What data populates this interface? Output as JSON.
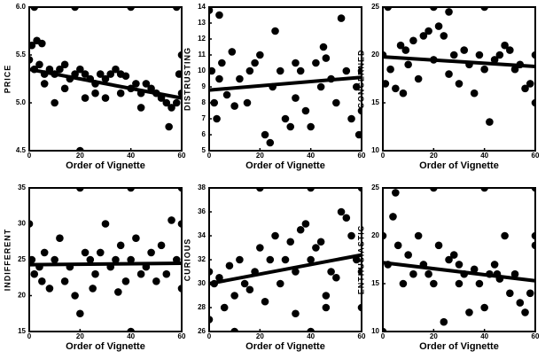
{
  "chart_data": [
    {
      "type": "scatter",
      "y_label": "PRICE",
      "x_label": "Order of Vignette",
      "color": "#000000",
      "xlim": [
        0,
        60
      ],
      "ylim": [
        4.5,
        6.0
      ],
      "xticks": [
        0,
        20,
        40,
        60
      ],
      "yticks": [
        4.5,
        {
          "value": 5,
          "label": "5.0"
        },
        5.5,
        {
          "value": 6,
          "label": "6.0"
        }
      ],
      "series": [
        {
          "x": [
            0,
            1,
            3,
            5,
            2,
            4,
            6,
            8,
            10,
            12,
            14,
            16,
            18,
            20,
            22,
            24,
            26,
            28,
            30,
            32,
            34,
            36,
            38,
            40,
            42,
            44,
            46,
            48,
            50,
            52,
            54,
            56,
            58,
            60,
            60,
            59,
            55,
            20,
            2,
            18,
            40,
            58,
            10,
            14,
            22,
            30,
            36,
            44,
            6,
            26
          ],
          "values": [
            5.45,
            5.6,
            5.65,
            5.62,
            5.35,
            5.4,
            5.3,
            5.35,
            5.3,
            5.35,
            5.4,
            5.25,
            5.3,
            5.35,
            5.3,
            5.25,
            5.2,
            5.3,
            5.25,
            5.3,
            5.35,
            5.3,
            5.28,
            5.15,
            5.2,
            5.1,
            5.2,
            5.15,
            5.1,
            5.05,
            5.0,
            4.95,
            5.0,
            5.1,
            5.5,
            5.3,
            4.75,
            4.5,
            6.0,
            6.0,
            6.0,
            6.0,
            5.0,
            5.15,
            5.05,
            5.05,
            5.1,
            4.95,
            5.2,
            5.1
          ]
        }
      ],
      "trend": {
        "x": [
          0,
          60
        ],
        "values": [
          5.35,
          5.05
        ]
      }
    },
    {
      "type": "scatter",
      "y_label": "DISTRUSTING",
      "x_label": "Order of Vignette",
      "color": "#000000",
      "xlim": [
        0,
        60
      ],
      "ylim": [
        5,
        14
      ],
      "xticks": [
        0,
        20,
        40,
        60
      ],
      "yticks": [
        5,
        6,
        7,
        8,
        9,
        10,
        11,
        12,
        13,
        14
      ],
      "series": [
        {
          "x": [
            0,
            1,
            2,
            3,
            4,
            5,
            7,
            9,
            12,
            15,
            18,
            20,
            22,
            24,
            25,
            26,
            28,
            30,
            32,
            34,
            36,
            38,
            40,
            42,
            44,
            45,
            48,
            50,
            52,
            54,
            56,
            58,
            60,
            60,
            59,
            34,
            16,
            10,
            46,
            4
          ],
          "values": [
            13.8,
            10,
            8,
            7,
            9.5,
            10.5,
            8.5,
            11.2,
            9.5,
            8,
            10.5,
            11,
            6,
            5.5,
            9,
            12.5,
            10,
            7,
            6.5,
            8.3,
            10,
            7.5,
            6.5,
            10.5,
            9,
            11.5,
            9.5,
            8,
            13.3,
            10,
            7,
            9,
            10,
            7.5,
            6,
            10.5,
            10,
            7.8,
            10.8,
            13.5
          ]
        }
      ],
      "trend": {
        "x": [
          0,
          60
        ],
        "values": [
          8.8,
          9.6
        ]
      }
    },
    {
      "type": "scatter",
      "y_label": "CONCERNED",
      "x_label": "Order of Vignette",
      "color": "#000000",
      "xlim": [
        0,
        60
      ],
      "ylim": [
        10,
        25
      ],
      "xticks": [
        0,
        20,
        40,
        60
      ],
      "yticks": [
        10,
        15,
        20,
        25
      ],
      "series": [
        {
          "x": [
            0,
            1,
            3,
            5,
            7,
            9,
            10,
            12,
            14,
            16,
            18,
            20,
            22,
            24,
            26,
            28,
            30,
            32,
            34,
            36,
            38,
            40,
            42,
            44,
            46,
            48,
            50,
            52,
            54,
            56,
            58,
            60,
            60,
            2,
            20,
            40,
            8,
            26
          ],
          "values": [
            20,
            17,
            18.5,
            16.5,
            21,
            20.5,
            19,
            21.5,
            17.5,
            22,
            22.5,
            19.5,
            23,
            22,
            18,
            20,
            17,
            20.5,
            19,
            16,
            20,
            18.5,
            13,
            19.5,
            20,
            21,
            20.5,
            18.5,
            19,
            16.5,
            17,
            15,
            20,
            25,
            25,
            25,
            16,
            24.5
          ]
        }
      ],
      "trend": {
        "x": [
          0,
          60
        ],
        "values": [
          19.8,
          18.8
        ]
      }
    },
    {
      "type": "scatter",
      "y_label": "INDIFFERENT",
      "x_label": "Order of Vignette",
      "color": "#000000",
      "xlim": [
        0,
        60
      ],
      "ylim": [
        15,
        35
      ],
      "xticks": [
        0,
        20,
        40,
        60
      ],
      "yticks": [
        15,
        20,
        25,
        30,
        35
      ],
      "series": [
        {
          "x": [
            0,
            1,
            2,
            4,
            6,
            8,
            10,
            12,
            14,
            16,
            18,
            20,
            22,
            24,
            26,
            28,
            30,
            32,
            34,
            36,
            38,
            40,
            42,
            44,
            46,
            48,
            50,
            52,
            54,
            56,
            58,
            60,
            60,
            40,
            60,
            20,
            40,
            5,
            35,
            25
          ],
          "values": [
            30,
            25,
            23,
            24,
            26,
            21,
            25,
            28,
            22,
            24,
            20,
            17.5,
            26,
            25,
            23,
            26,
            30,
            24,
            25,
            27,
            22,
            25,
            28,
            23,
            24,
            26,
            22,
            27,
            23,
            30.5,
            25,
            21,
            30,
            15,
            35,
            35,
            35,
            22,
            20.5,
            21
          ]
        }
      ],
      "trend": {
        "x": [
          0,
          60
        ],
        "values": [
          24.3,
          24.5
        ]
      }
    },
    {
      "type": "scatter",
      "y_label": "CURIOUS",
      "x_label": "Order of Vignette",
      "color": "#000000",
      "xlim": [
        0,
        60
      ],
      "ylim": [
        26,
        38
      ],
      "xticks": [
        0,
        20,
        40,
        60
      ],
      "yticks": [
        26,
        28,
        30,
        32,
        34,
        36,
        38
      ],
      "series": [
        {
          "x": [
            0,
            2,
            4,
            6,
            8,
            10,
            12,
            14,
            16,
            18,
            20,
            22,
            24,
            26,
            28,
            30,
            32,
            34,
            36,
            38,
            40,
            42,
            44,
            46,
            48,
            50,
            52,
            54,
            56,
            58,
            60,
            60,
            40,
            20,
            40,
            60,
            34,
            10,
            46,
            0
          ],
          "values": [
            31,
            30,
            30.5,
            28,
            31.5,
            29,
            32,
            30,
            29.5,
            31,
            33,
            28.5,
            32,
            34,
            30,
            32,
            33.5,
            31,
            34.5,
            35,
            32,
            33,
            33.5,
            29,
            31,
            30.5,
            36,
            35.5,
            34,
            32,
            31,
            28,
            26,
            38,
            38,
            38,
            27.5,
            26,
            28,
            27
          ]
        }
      ],
      "trend": {
        "x": [
          0,
          60
        ],
        "values": [
          30,
          32.4
        ]
      }
    },
    {
      "type": "scatter",
      "y_label": "ENTHUSIASTIC",
      "x_label": "Order of Vignette",
      "color": "#000000",
      "xlim": [
        0,
        60
      ],
      "ylim": [
        10,
        25
      ],
      "xticks": [
        0,
        20,
        40,
        60
      ],
      "yticks": [
        10,
        15,
        20,
        25
      ],
      "series": [
        {
          "x": [
            0,
            2,
            4,
            6,
            8,
            10,
            12,
            14,
            16,
            18,
            20,
            22,
            24,
            26,
            28,
            30,
            32,
            34,
            36,
            38,
            40,
            42,
            44,
            46,
            48,
            50,
            52,
            54,
            56,
            58,
            60,
            60,
            20,
            40,
            5,
            60,
            0,
            45,
            30
          ],
          "values": [
            20,
            17,
            22,
            19,
            15,
            18,
            16,
            20,
            17,
            16,
            15,
            19,
            11,
            17.5,
            18,
            15,
            16,
            12,
            16.5,
            15,
            12.5,
            16,
            17,
            15.5,
            20,
            14,
            16,
            13,
            12,
            14,
            19,
            20,
            25,
            25,
            24.5,
            25,
            10,
            16,
            17
          ]
        }
      ],
      "trend": {
        "x": [
          0,
          60
        ],
        "values": [
          17.2,
          15.3
        ]
      }
    }
  ]
}
